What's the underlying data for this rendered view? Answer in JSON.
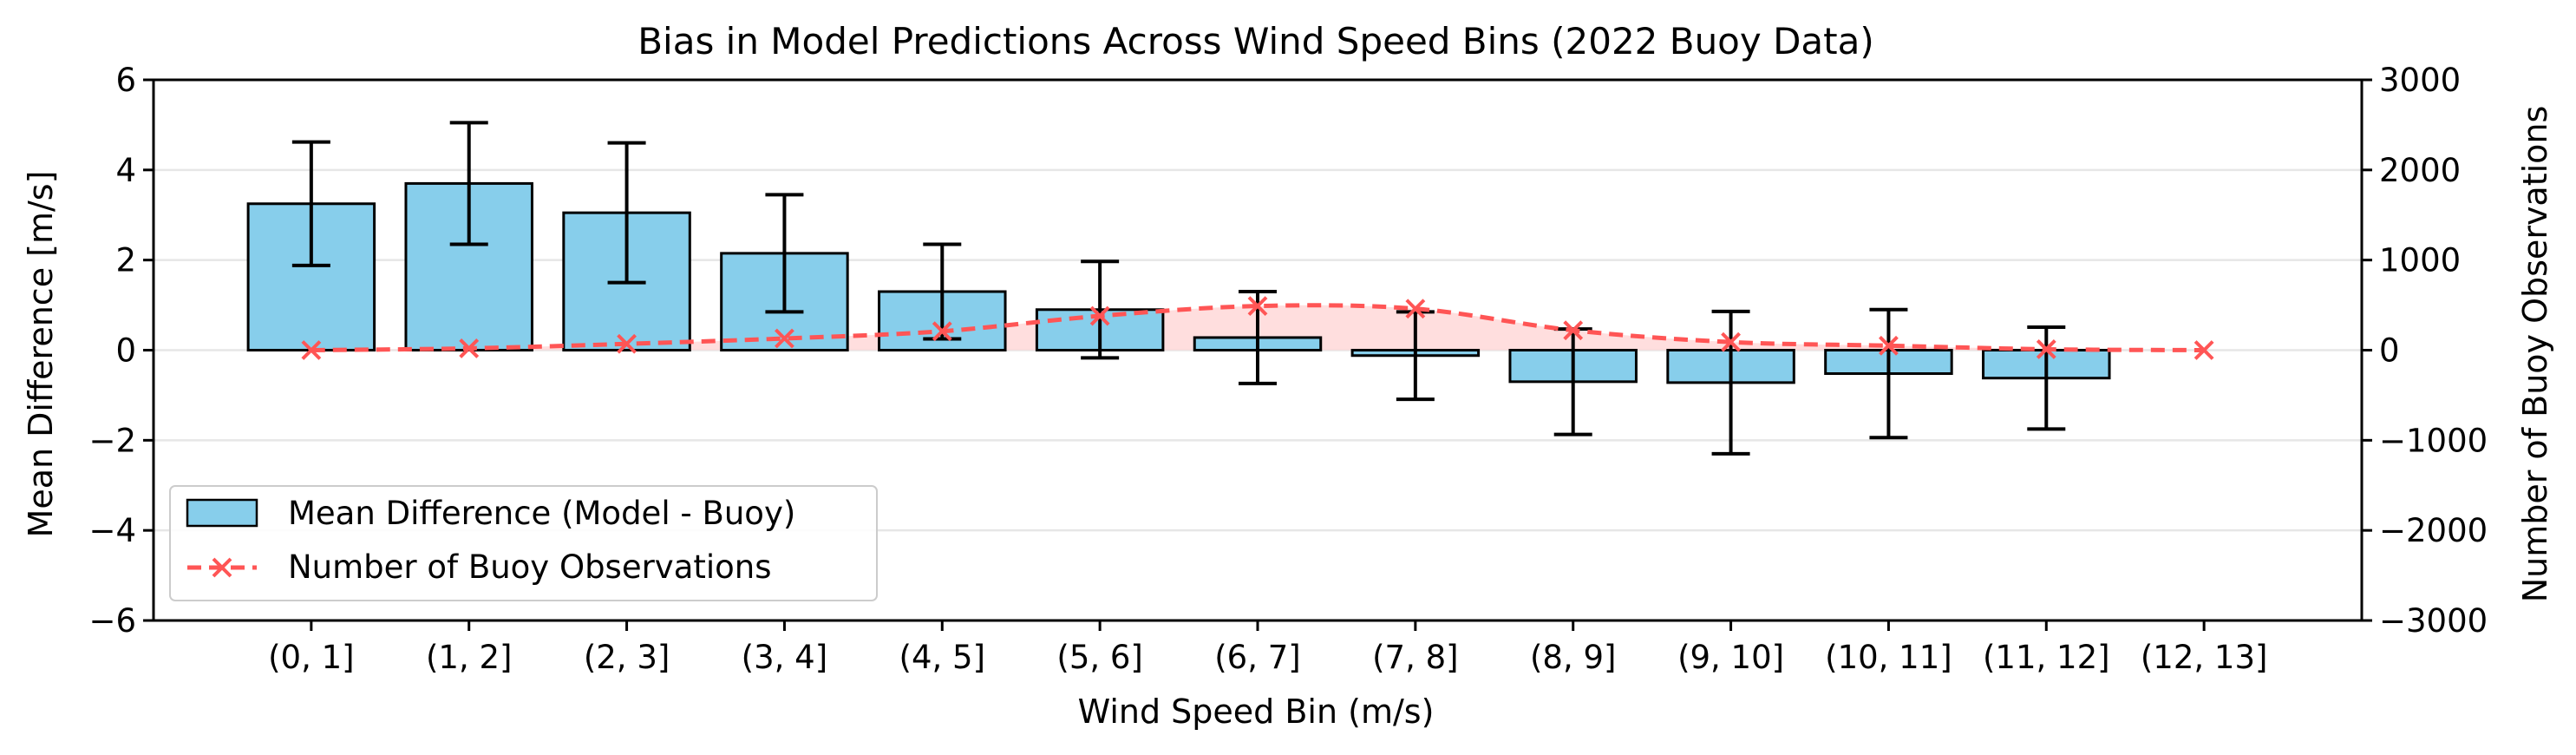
{
  "chart_data": {
    "type": "bar",
    "title": "Bias in Model Predictions Across Wind Speed Bins (2022 Buoy Data)",
    "xlabel": "Wind Speed Bin (m/s)",
    "ylabel": "Mean Difference [m/s]",
    "y2label": "Number of Buoy Observations",
    "categories": [
      "(0, 1]",
      "(1, 2]",
      "(2, 3]",
      "(3, 4]",
      "(4, 5]",
      "(5, 6]",
      "(6, 7]",
      "(7, 8]",
      "(8, 9]",
      "(9, 10]",
      "(10, 11]",
      "(11, 12]",
      "(12, 13]"
    ],
    "ylim": [
      -6,
      6
    ],
    "y_ticks": [
      -6,
      -4,
      -2,
      0,
      2,
      4,
      6
    ],
    "y2lim": [
      -3000,
      3000
    ],
    "y2_ticks": [
      -3000,
      -2000,
      -1000,
      0,
      1000,
      2000,
      3000
    ],
    "grid": "horizontal",
    "legend_position": "lower-left",
    "series": [
      {
        "name": "Mean Difference (Model - Buoy)",
        "kind": "bar",
        "color": "#87CEEB",
        "values": [
          3.25,
          3.7,
          3.05,
          2.15,
          1.3,
          0.9,
          0.28,
          -0.12,
          -0.7,
          -0.72,
          -0.52,
          -0.62,
          null
        ],
        "error": [
          1.37,
          1.35,
          1.55,
          1.3,
          1.05,
          1.07,
          1.02,
          0.97,
          1.17,
          1.58,
          1.42,
          1.13,
          null
        ]
      },
      {
        "name": "Number of Buoy Observations",
        "kind": "line",
        "color": "#FF5555",
        "fill_color": "#FFD6D6",
        "axis": "secondary",
        "values": [
          0,
          20,
          70,
          130,
          210,
          380,
          490,
          460,
          220,
          90,
          50,
          10,
          0
        ]
      }
    ]
  }
}
